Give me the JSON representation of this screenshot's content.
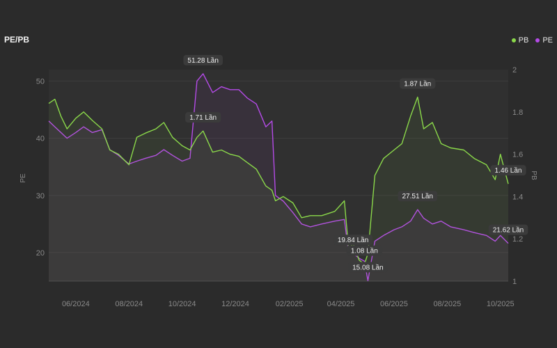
{
  "title": "PE/PB",
  "legend": [
    {
      "name": "PB",
      "color": "#8bd94a"
    },
    {
      "name": "PE",
      "color": "#b54be8"
    }
  ],
  "chart_data": {
    "type": "line",
    "title": "PE/PB",
    "xlabel": "",
    "ylabel_left": "PE",
    "ylabel_right": "PB",
    "x_ticks": [
      "06/2024",
      "08/2024",
      "10/2024",
      "12/2024",
      "02/2025",
      "04/2025",
      "06/2025",
      "08/2025",
      "10/2025"
    ],
    "x_range": [
      "2024-05-01",
      "2025-10-10"
    ],
    "ylim_left": [
      15,
      52
    ],
    "y_ticks_left": [
      20,
      30,
      40,
      50
    ],
    "ylim_right": [
      1,
      2
    ],
    "y_ticks_right": [
      1,
      1.2,
      1.4,
      1.6,
      1.8,
      2
    ],
    "grid": true,
    "legend_position": "top-right",
    "series": [
      {
        "name": "PE",
        "axis": "left",
        "color": "#b54be8",
        "points": [
          [
            "2024-05-01",
            43
          ],
          [
            "2024-05-08",
            42
          ],
          [
            "2024-05-15",
            41
          ],
          [
            "2024-05-22",
            40
          ],
          [
            "2024-06-01",
            41
          ],
          [
            "2024-06-10",
            42
          ],
          [
            "2024-06-20",
            41
          ],
          [
            "2024-07-01",
            41.5
          ],
          [
            "2024-07-10",
            38
          ],
          [
            "2024-07-20",
            37
          ],
          [
            "2024-08-01",
            35.5
          ],
          [
            "2024-08-10",
            36
          ],
          [
            "2024-08-20",
            36.5
          ],
          [
            "2024-09-01",
            37
          ],
          [
            "2024-09-10",
            38
          ],
          [
            "2024-09-20",
            37
          ],
          [
            "2024-10-01",
            36
          ],
          [
            "2024-10-10",
            36.5
          ],
          [
            "2024-10-18",
            50
          ],
          [
            "2024-10-25",
            51.28
          ],
          [
            "2024-11-05",
            48
          ],
          [
            "2024-11-15",
            49
          ],
          [
            "2024-11-25",
            48.5
          ],
          [
            "2024-12-05",
            48.5
          ],
          [
            "2024-12-15",
            47
          ],
          [
            "2024-12-25",
            46
          ],
          [
            "2025-01-05",
            42
          ],
          [
            "2025-01-12",
            43
          ],
          [
            "2025-01-16",
            30
          ],
          [
            "2025-01-25",
            29
          ],
          [
            "2025-02-05",
            27
          ],
          [
            "2025-02-15",
            25
          ],
          [
            "2025-02-25",
            24.5
          ],
          [
            "2025-03-10",
            25
          ],
          [
            "2025-03-25",
            25.5
          ],
          [
            "2025-04-05",
            25.8
          ],
          [
            "2025-04-10",
            20
          ],
          [
            "2025-04-15",
            19.84
          ],
          [
            "2025-04-22",
            19
          ],
          [
            "2025-04-28",
            18.5
          ],
          [
            "2025-05-02",
            15.08
          ],
          [
            "2025-05-10",
            22
          ],
          [
            "2025-05-20",
            23
          ],
          [
            "2025-06-01",
            24
          ],
          [
            "2025-06-10",
            24.5
          ],
          [
            "2025-06-20",
            25.5
          ],
          [
            "2025-06-28",
            27.51
          ],
          [
            "2025-07-05",
            26
          ],
          [
            "2025-07-15",
            25
          ],
          [
            "2025-07-25",
            25.5
          ],
          [
            "2025-08-05",
            24.5
          ],
          [
            "2025-08-20",
            24
          ],
          [
            "2025-09-01",
            23.5
          ],
          [
            "2025-09-15",
            23
          ],
          [
            "2025-09-25",
            22
          ],
          [
            "2025-10-01",
            23
          ],
          [
            "2025-10-10",
            21.62
          ]
        ]
      },
      {
        "name": "PB",
        "axis": "right",
        "color": "#8bd94a",
        "points": [
          [
            "2024-05-01",
            1.84
          ],
          [
            "2024-05-08",
            1.86
          ],
          [
            "2024-05-15",
            1.78
          ],
          [
            "2024-05-22",
            1.72
          ],
          [
            "2024-06-01",
            1.77
          ],
          [
            "2024-06-10",
            1.8
          ],
          [
            "2024-06-20",
            1.76
          ],
          [
            "2024-07-01",
            1.72
          ],
          [
            "2024-07-10",
            1.62
          ],
          [
            "2024-07-20",
            1.6
          ],
          [
            "2024-08-01",
            1.55
          ],
          [
            "2024-08-10",
            1.68
          ],
          [
            "2024-08-20",
            1.7
          ],
          [
            "2024-09-01",
            1.72
          ],
          [
            "2024-09-10",
            1.75
          ],
          [
            "2024-09-20",
            1.68
          ],
          [
            "2024-10-01",
            1.64
          ],
          [
            "2024-10-10",
            1.62
          ],
          [
            "2024-10-18",
            1.68
          ],
          [
            "2024-10-25",
            1.71
          ],
          [
            "2024-11-05",
            1.61
          ],
          [
            "2024-11-15",
            1.62
          ],
          [
            "2024-11-25",
            1.6
          ],
          [
            "2024-12-05",
            1.59
          ],
          [
            "2024-12-15",
            1.56
          ],
          [
            "2024-12-25",
            1.53
          ],
          [
            "2025-01-05",
            1.45
          ],
          [
            "2025-01-12",
            1.43
          ],
          [
            "2025-01-16",
            1.38
          ],
          [
            "2025-01-25",
            1.4
          ],
          [
            "2025-02-05",
            1.37
          ],
          [
            "2025-02-15",
            1.3
          ],
          [
            "2025-02-25",
            1.31
          ],
          [
            "2025-03-10",
            1.31
          ],
          [
            "2025-03-25",
            1.33
          ],
          [
            "2025-04-05",
            1.38
          ],
          [
            "2025-04-10",
            1.15
          ],
          [
            "2025-04-15",
            1.18
          ],
          [
            "2025-04-22",
            1.1
          ],
          [
            "2025-04-28",
            1.08
          ],
          [
            "2025-05-02",
            1.13
          ],
          [
            "2025-05-10",
            1.5
          ],
          [
            "2025-05-20",
            1.58
          ],
          [
            "2025-06-01",
            1.62
          ],
          [
            "2025-06-10",
            1.65
          ],
          [
            "2025-06-20",
            1.78
          ],
          [
            "2025-06-28",
            1.87
          ],
          [
            "2025-07-05",
            1.72
          ],
          [
            "2025-07-15",
            1.75
          ],
          [
            "2025-07-25",
            1.65
          ],
          [
            "2025-08-05",
            1.63
          ],
          [
            "2025-08-20",
            1.62
          ],
          [
            "2025-09-01",
            1.58
          ],
          [
            "2025-09-15",
            1.55
          ],
          [
            "2025-09-25",
            1.48
          ],
          [
            "2025-10-01",
            1.6
          ],
          [
            "2025-10-10",
            1.46
          ]
        ]
      }
    ],
    "annotations": [
      {
        "series": "PE",
        "x": "2024-10-25",
        "y": 51.28,
        "text": "51.28 Lần"
      },
      {
        "series": "PB",
        "x": "2024-10-25",
        "y": 1.71,
        "text": "1.71 Lần"
      },
      {
        "series": "PB",
        "x": "2025-06-28",
        "y": 1.87,
        "text": "1.87 Lần"
      },
      {
        "series": "PE",
        "x": "2025-06-28",
        "y": 27.51,
        "text": "27.51 Lần"
      },
      {
        "series": "PE",
        "x": "2025-04-15",
        "y": 19.84,
        "text": "19.84 Lần"
      },
      {
        "series": "PB",
        "x": "2025-04-28",
        "y": 1.08,
        "text": "1.08 Lần"
      },
      {
        "series": "PE",
        "x": "2025-05-02",
        "y": 15.08,
        "text": "15.08 Lần"
      },
      {
        "series": "PB",
        "x": "2025-10-10",
        "y": 1.46,
        "text": "1.46 Lần"
      },
      {
        "series": "PE",
        "x": "2025-10-10",
        "y": 21.62,
        "text": "21.62 Lần"
      }
    ]
  }
}
